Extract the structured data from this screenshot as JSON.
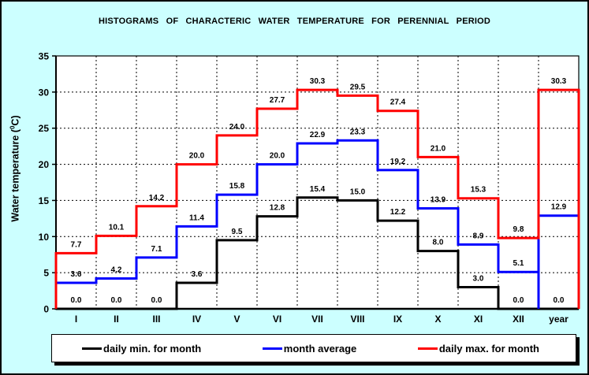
{
  "window": {
    "background_color": "#CCFFFF",
    "border_color": "#000000"
  },
  "chart_data": {
    "type": "line",
    "subtype": "step-histogram",
    "title": "HISTOGRAMS OF CHARACTERIC WATER TEMPERATURE FOR PERENNIAL PERIOD",
    "ylabel": "Water temperature (0C)",
    "ylabel_parts": {
      "prefix": "Water temperature (",
      "sup": "0",
      "suffix": "C)"
    },
    "categories": [
      "I",
      "II",
      "III",
      "IV",
      "V",
      "VI",
      "VII",
      "VIII",
      "IX",
      "X",
      "XI",
      "XII",
      "year"
    ],
    "ylim": [
      0,
      35
    ],
    "ytick_step": 5,
    "grid": "dashed",
    "plot_background": "#FFFFFF",
    "grid_color": "#000000",
    "axis_color": "#000000",
    "legend_position": "bottom",
    "series": [
      {
        "id": "min",
        "name": "daily min. for month",
        "color": "#000000",
        "values": [
          0.0,
          0.0,
          0.0,
          3.6,
          9.5,
          12.8,
          15.4,
          15.0,
          12.2,
          8.0,
          3.0,
          0.0,
          0.0
        ]
      },
      {
        "id": "avg",
        "name": "month average",
        "color": "#0000FF",
        "values": [
          3.6,
          4.2,
          7.1,
          11.4,
          15.8,
          20.0,
          22.9,
          23.3,
          19.2,
          13.9,
          8.9,
          5.1,
          12.9
        ]
      },
      {
        "id": "max",
        "name": "daily max. for month",
        "color": "#FF0000",
        "values": [
          7.7,
          10.1,
          14.2,
          20.0,
          24.0,
          27.7,
          30.3,
          29.5,
          27.4,
          21.0,
          15.3,
          9.8,
          30.3
        ]
      }
    ]
  }
}
